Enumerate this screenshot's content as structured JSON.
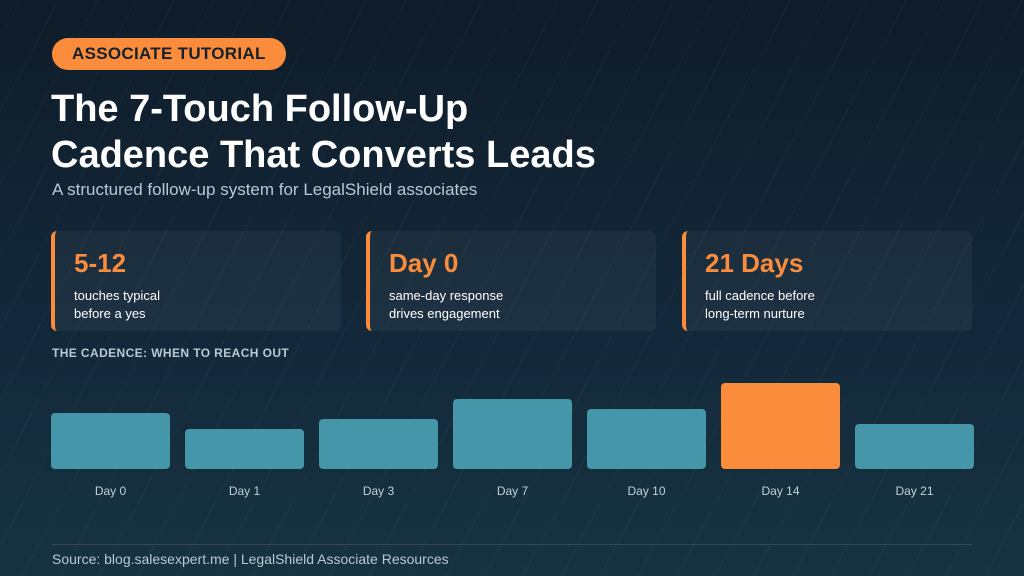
{
  "badge": "ASSOCIATE TUTORIAL",
  "title_lines": [
    "The 7-Touch Follow-Up",
    "Cadence That Converts Leads"
  ],
  "subtitle": "A structured follow-up system for LegalShield associates",
  "stats": [
    {
      "value": "5-12",
      "desc_lines": [
        "touches typical",
        "before a yes"
      ]
    },
    {
      "value": "Day 0",
      "desc_lines": [
        "same-day response",
        "drives engagement"
      ]
    },
    {
      "value": "21 Days",
      "desc_lines": [
        "full cadence before",
        "long-term nurture"
      ]
    }
  ],
  "section_label": "THE CADENCE: WHEN TO REACH OUT",
  "footer": {
    "source": "Source: blog.salesexpert.me  |  LegalShield Associate Resources"
  },
  "colors": {
    "bar": "#4496a8",
    "highlight": "#fb8c3c",
    "accent": "#fb8c3c"
  },
  "chart_data": {
    "type": "bar",
    "categories": [
      "Day 0",
      "Day 1",
      "Day 3",
      "Day 7",
      "Day 10",
      "Day 14",
      "Day 21"
    ],
    "values": [
      56,
      40,
      50,
      70,
      60,
      86,
      45
    ],
    "highlight_index": 5,
    "ylim": [
      0,
      100
    ],
    "title": "",
    "xlabel": "",
    "ylabel": "",
    "grid": false
  }
}
